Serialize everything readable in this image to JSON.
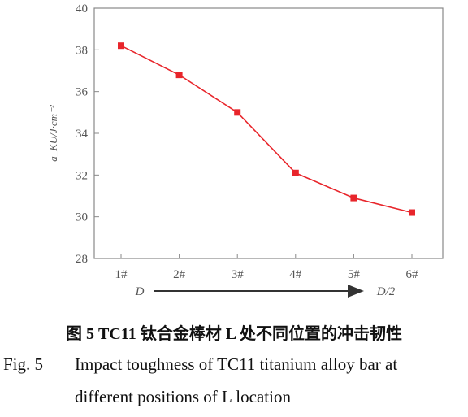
{
  "chart_data": {
    "type": "line",
    "categories": [
      "1#",
      "2#",
      "3#",
      "4#",
      "5#",
      "6#"
    ],
    "series": [
      {
        "values": [
          38.2,
          36.8,
          35.0,
          32.1,
          30.9,
          30.2
        ]
      }
    ],
    "ylim": [
      28,
      40
    ],
    "yticks": [
      "28",
      "30",
      "32",
      "34",
      "36",
      "38",
      "40"
    ],
    "ylabel": "a_KU/J·cm⁻²",
    "x_direction": {
      "from": "D",
      "to": "D/2"
    },
    "line_color": "#e8252b",
    "marker_color": "#e8252b",
    "grid": false
  },
  "caption": {
    "cn": "图 5   TC11 钛合金棒材 L 处不同位置的冲击韧性",
    "en_label": "Fig. 5",
    "en_line1": "Impact toughness of TC11 titanium alloy bar at",
    "en_line2": "different positions of L location"
  }
}
